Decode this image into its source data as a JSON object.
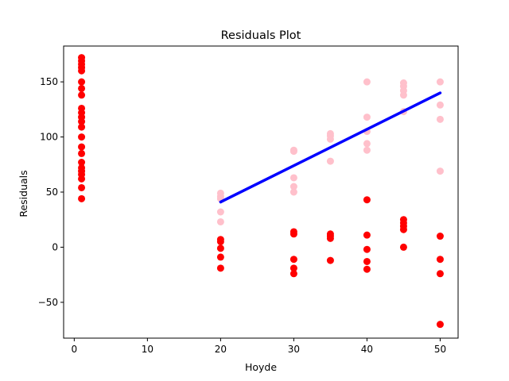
{
  "chart_data": {
    "type": "scatter",
    "title": "Residuals Plot",
    "xlabel": "Hoyde",
    "ylabel": "Residuals",
    "xlim": [
      -1.45,
      52.45
    ],
    "ylim": [
      -82.5,
      182.5
    ],
    "xticks": [
      0,
      10,
      20,
      30,
      40,
      50
    ],
    "yticks": [
      -50,
      0,
      50,
      100,
      150
    ],
    "ytick_labels": [
      "−50",
      "0",
      "50",
      "100",
      "150"
    ],
    "grid": false,
    "legend": "none",
    "series": [
      {
        "color": "#ffc0cb",
        "marker": "circle",
        "points": [
          [
            20,
            49
          ],
          [
            20,
            46
          ],
          [
            20,
            44
          ],
          [
            20,
            32
          ],
          [
            20,
            23
          ],
          [
            30,
            88
          ],
          [
            30,
            87
          ],
          [
            30,
            63
          ],
          [
            30,
            55
          ],
          [
            30,
            50
          ],
          [
            35,
            103
          ],
          [
            35,
            101
          ],
          [
            35,
            98
          ],
          [
            35,
            78
          ],
          [
            40,
            150
          ],
          [
            40,
            118
          ],
          [
            40,
            105
          ],
          [
            40,
            94
          ],
          [
            40,
            88
          ],
          [
            45,
            149
          ],
          [
            45,
            146
          ],
          [
            45,
            142
          ],
          [
            45,
            138
          ],
          [
            45,
            123
          ],
          [
            50,
            150
          ],
          [
            50,
            129
          ],
          [
            50,
            116
          ],
          [
            50,
            69
          ]
        ]
      },
      {
        "color": "#ff0000",
        "marker": "circle",
        "points": [
          [
            1,
            172
          ],
          [
            1,
            169
          ],
          [
            1,
            166
          ],
          [
            1,
            163
          ],
          [
            1,
            160
          ],
          [
            1,
            150
          ],
          [
            1,
            144
          ],
          [
            1,
            138
          ],
          [
            1,
            126
          ],
          [
            1,
            122
          ],
          [
            1,
            118
          ],
          [
            1,
            114
          ],
          [
            1,
            109
          ],
          [
            1,
            100
          ],
          [
            1,
            91
          ],
          [
            1,
            85
          ],
          [
            1,
            77
          ],
          [
            1,
            72
          ],
          [
            1,
            69
          ],
          [
            1,
            66
          ],
          [
            1,
            62
          ],
          [
            1,
            54
          ],
          [
            1,
            44
          ],
          [
            20,
            7
          ],
          [
            20,
            5
          ],
          [
            20,
            -1
          ],
          [
            20,
            -9
          ],
          [
            20,
            -19
          ],
          [
            30,
            14
          ],
          [
            30,
            12
          ],
          [
            30,
            -11
          ],
          [
            30,
            -19
          ],
          [
            30,
            -24
          ],
          [
            35,
            12
          ],
          [
            35,
            10
          ],
          [
            35,
            8
          ],
          [
            35,
            -12
          ],
          [
            40,
            43
          ],
          [
            40,
            11
          ],
          [
            40,
            -2
          ],
          [
            40,
            -13
          ],
          [
            40,
            -20
          ],
          [
            45,
            25
          ],
          [
            45,
            22
          ],
          [
            45,
            19
          ],
          [
            45,
            16
          ],
          [
            45,
            0
          ],
          [
            50,
            10
          ],
          [
            50,
            -11
          ],
          [
            50,
            -24
          ],
          [
            50,
            -70
          ]
        ]
      }
    ],
    "fit_line": {
      "color": "#0000ff",
      "x": [
        20,
        50
      ],
      "y": [
        41,
        140
      ]
    }
  }
}
